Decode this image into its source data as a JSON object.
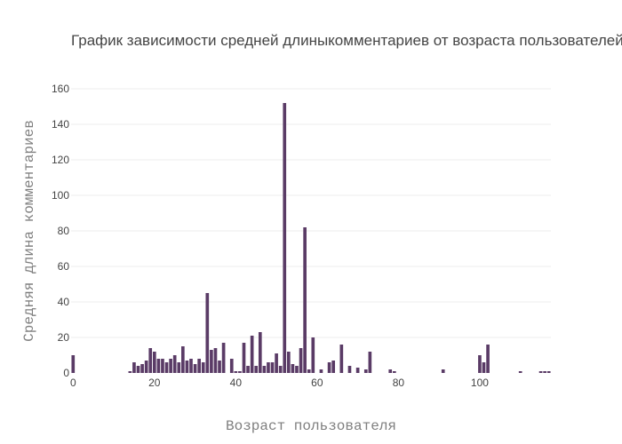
{
  "chart_data": {
    "type": "bar",
    "title": "График зависимости средней длиныкомментариев от возраста пользователей",
    "xlabel": "Возраст пользователя",
    "ylabel": "Средняя длина комментариев",
    "xlim": [
      -0.5,
      117.5
    ],
    "ylim": [
      0,
      160
    ],
    "x_ticks": [
      0,
      20,
      40,
      60,
      80,
      100
    ],
    "y_ticks": [
      0,
      20,
      40,
      60,
      80,
      100,
      120,
      140,
      160
    ],
    "grid": true,
    "bar_color": "#5a3b66",
    "series": [
      {
        "x": [
          0,
          14,
          15,
          16,
          17,
          18,
          19,
          20,
          21,
          22,
          23,
          24,
          25,
          26,
          27,
          28,
          29,
          30,
          31,
          32,
          33,
          34,
          35,
          36,
          37,
          39,
          40,
          41,
          42,
          43,
          44,
          45,
          46,
          47,
          48,
          49,
          50,
          51,
          52,
          53,
          54,
          55,
          56,
          57,
          58,
          59,
          61,
          63,
          64,
          66,
          68,
          70,
          72,
          73,
          78,
          79,
          91,
          100,
          101,
          102,
          110,
          115,
          116,
          117
        ],
        "y": [
          10,
          1,
          6,
          4,
          5,
          7,
          14,
          12,
          8,
          8,
          6,
          8,
          10,
          6,
          15,
          7,
          8,
          5,
          8,
          6,
          45,
          13,
          14,
          7,
          17,
          8,
          1,
          1,
          17,
          4,
          21,
          4,
          23,
          4,
          6,
          6,
          11,
          4,
          152,
          12,
          5,
          4,
          14,
          82,
          2,
          20,
          2,
          6,
          7,
          16,
          4,
          3,
          2,
          12,
          2,
          1,
          2,
          10,
          6,
          16,
          1,
          1,
          1,
          1
        ]
      }
    ]
  }
}
